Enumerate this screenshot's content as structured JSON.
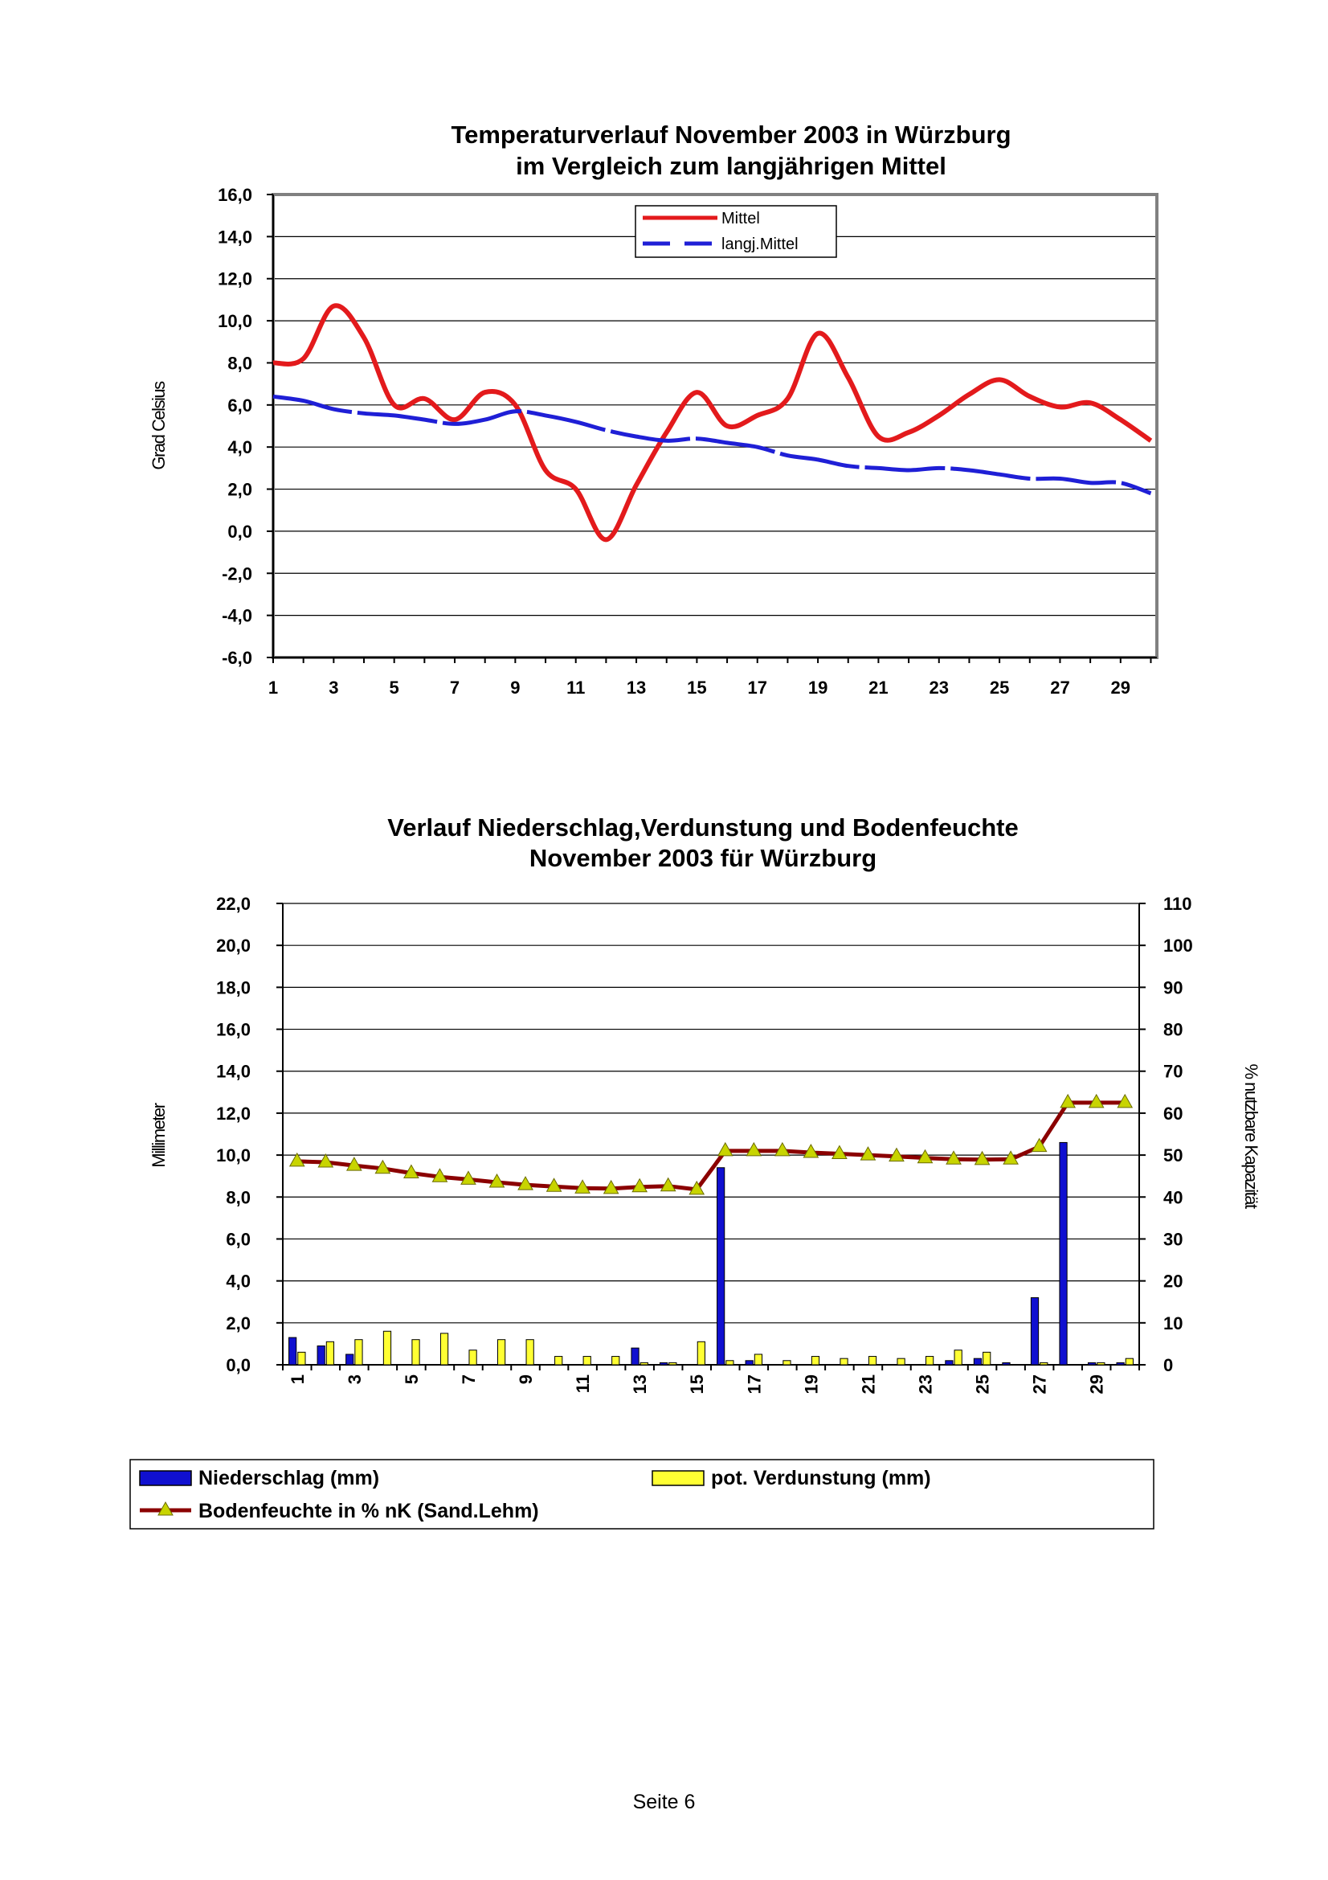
{
  "chart_data": [
    {
      "type": "line",
      "title": [
        "Temperaturverlauf November 2003 in Würzburg",
        "im Vergleich zum langjährigen Mittel"
      ],
      "ylabel": "Grad Celsius",
      "xlabel": "",
      "ylim": [
        -6,
        16
      ],
      "yticks": [
        "16,0",
        "14,0",
        "12,0",
        "10,0",
        "8,0",
        "6,0",
        "4,0",
        "2,0",
        "0,0",
        "-2,0",
        "-4,0",
        "-6,0"
      ],
      "xticks": [
        "1",
        "3",
        "5",
        "7",
        "9",
        "11",
        "13",
        "15",
        "17",
        "19",
        "21",
        "23",
        "25",
        "27",
        "29"
      ],
      "x": [
        1,
        2,
        3,
        4,
        5,
        6,
        7,
        8,
        9,
        10,
        11,
        12,
        13,
        14,
        15,
        16,
        17,
        18,
        19,
        20,
        21,
        22,
        23,
        24,
        25,
        26,
        27,
        28,
        29,
        30
      ],
      "legend_position": "top-center",
      "grid": true,
      "series": [
        {
          "name": "Mittel",
          "color": "#e31a1c",
          "style": "solid",
          "values": [
            8.0,
            8.2,
            10.7,
            9.2,
            6.0,
            6.3,
            5.3,
            6.6,
            6.0,
            2.9,
            2.0,
            -0.4,
            2.2,
            4.7,
            6.6,
            5.0,
            5.5,
            6.3,
            9.4,
            7.3,
            4.5,
            4.7,
            5.5,
            6.5,
            7.2,
            6.4,
            5.9,
            6.1,
            5.3,
            4.3
          ]
        },
        {
          "name": "langj.Mittel",
          "color": "#1f1fd6",
          "style": "dashed",
          "values": [
            6.4,
            6.2,
            5.8,
            5.6,
            5.5,
            5.3,
            5.1,
            5.3,
            5.7,
            5.5,
            5.2,
            4.8,
            4.5,
            4.3,
            4.4,
            4.2,
            4.0,
            3.6,
            3.4,
            3.1,
            3.0,
            2.9,
            3.0,
            2.9,
            2.7,
            2.5,
            2.5,
            2.3,
            2.3,
            1.8
          ]
        }
      ]
    },
    {
      "type": "bar",
      "title": [
        "Verlauf Niederschlag,Verdunstung und Bodenfeuchte",
        "November 2003 für Würzburg"
      ],
      "ylabel": "Millimeter",
      "y2label": "% nutzbare Kapazität",
      "ylim": [
        0,
        22
      ],
      "y2lim": [
        0,
        110
      ],
      "yticks": [
        "22,0",
        "20,0",
        "18,0",
        "16,0",
        "14,0",
        "12,0",
        "10,0",
        "8,0",
        "6,0",
        "4,0",
        "2,0",
        "0,0"
      ],
      "y2ticks": [
        "110",
        "100",
        "90",
        "80",
        "70",
        "60",
        "50",
        "40",
        "30",
        "20",
        "10",
        "0"
      ],
      "xticks": [
        "1",
        "3",
        "5",
        "7",
        "9",
        "11",
        "13",
        "15",
        "17",
        "19",
        "21",
        "23",
        "25",
        "27",
        "29"
      ],
      "x": [
        1,
        2,
        3,
        4,
        5,
        6,
        7,
        8,
        9,
        10,
        11,
        12,
        13,
        14,
        15,
        16,
        17,
        18,
        19,
        20,
        21,
        22,
        23,
        24,
        25,
        26,
        27,
        28,
        29,
        30
      ],
      "legend_position": "bottom",
      "grid": true,
      "series": [
        {
          "name": "Niederschlag (mm)",
          "color": "#1010d0",
          "type": "bar",
          "values": [
            1.3,
            0.9,
            0.5,
            0,
            0,
            0,
            0,
            0,
            0,
            0,
            0,
            0,
            0.8,
            0.1,
            0,
            9.4,
            0.2,
            0,
            0,
            0,
            0,
            0,
            0,
            0.2,
            0.3,
            0.1,
            3.2,
            10.6,
            0.1,
            0.1
          ]
        },
        {
          "name": "pot. Verdunstung (mm)",
          "color": "#ffff33",
          "type": "bar",
          "values": [
            0.6,
            1.1,
            1.2,
            1.6,
            1.2,
            1.5,
            0.7,
            1.2,
            1.2,
            0.4,
            0.4,
            0.4,
            0.1,
            0.1,
            1.1,
            0.2,
            0.5,
            0.2,
            0.4,
            0.3,
            0.4,
            0.3,
            0.4,
            0.7,
            0.6,
            0,
            0.1,
            0,
            0.1,
            0.3
          ]
        },
        {
          "name": "Bodenfeuchte in % nK (Sand.Lehm)",
          "color": "#8b0000",
          "marker_color": "#c8d400",
          "type": "line",
          "axis": "y2",
          "values": [
            48.5,
            48.3,
            47.5,
            46.8,
            45.7,
            44.8,
            44.2,
            43.5,
            42.9,
            42.5,
            42.1,
            42.0,
            42.4,
            42.6,
            41.8,
            51.0,
            51.0,
            51.0,
            50.6,
            50.3,
            50.0,
            49.7,
            49.3,
            49.0,
            48.9,
            49.0,
            52.0,
            62.5,
            62.5,
            62.5
          ]
        }
      ]
    }
  ],
  "footer": "Seite 6"
}
